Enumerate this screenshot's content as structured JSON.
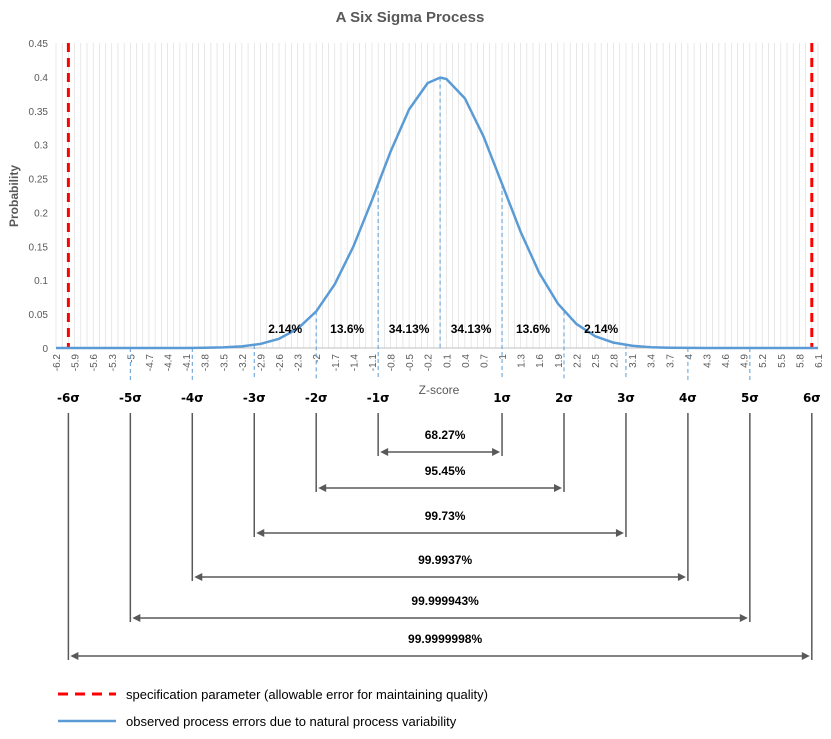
{
  "chart_data": {
    "type": "line",
    "title": "A Six Sigma Process",
    "xlabel": "Z-score",
    "ylabel": "Probability",
    "xlim": [
      -6.2,
      6.1
    ],
    "ylim": [
      0,
      0.45
    ],
    "y_ticks": [
      0,
      0.05,
      0.1,
      0.15,
      0.2,
      0.25,
      0.3,
      0.35,
      0.4,
      0.45
    ],
    "y_tick_labels": [
      "0",
      "0.05",
      "0.1",
      "0.15",
      "0.2",
      "0.25",
      "0.3",
      "0.35",
      "0.4",
      "0.45"
    ],
    "x_tick_labels": [
      "-6.2",
      "-5.9",
      "-5.6",
      "-5.3",
      "-5",
      "-4.7",
      "-4.4",
      "-4.1",
      "-3.8",
      "-3.5",
      "-3.2",
      "-2.9",
      "-2.6",
      "-2.3",
      "-2",
      "-1.7",
      "-1.4",
      "-1.1",
      "-0.8",
      "-0.5",
      "-0.2",
      "0.1",
      "0.4",
      "0.7",
      "1",
      "1.3",
      "1.6",
      "1.9",
      "2.2",
      "2.5",
      "2.8",
      "3.1",
      "3.4",
      "3.7",
      "4",
      "4.3",
      "4.6",
      "4.9",
      "5.2",
      "5.5",
      "5.8",
      "6.1"
    ],
    "grid": "vertical minor gridlines every 0.1",
    "series": [
      {
        "name": "observed process errors due to natural process variability",
        "color": "#5B9BD5",
        "x": [
          -6.2,
          -5.9,
          -5.6,
          -5.3,
          -5,
          -4.7,
          -4.4,
          -4.1,
          -3.8,
          -3.5,
          -3.2,
          -2.9,
          -2.6,
          -2.3,
          -2,
          -1.7,
          -1.4,
          -1.1,
          -0.8,
          -0.5,
          -0.2,
          0,
          0.1,
          0.4,
          0.7,
          1,
          1.3,
          1.6,
          1.9,
          2.2,
          2.5,
          2.8,
          3.1,
          3.4,
          3.7,
          4,
          4.3,
          4.6,
          4.9,
          5.2,
          5.5,
          5.8,
          6.1
        ],
        "y": [
          0,
          0,
          0,
          0,
          0,
          1e-05,
          2e-05,
          9e-05,
          0.0003,
          0.0009,
          0.0024,
          0.006,
          0.0136,
          0.0283,
          0.054,
          0.0941,
          0.1497,
          0.2179,
          0.2897,
          0.3521,
          0.391,
          0.3989,
          0.397,
          0.3683,
          0.3123,
          0.242,
          0.1714,
          0.1109,
          0.0656,
          0.0355,
          0.0175,
          0.0079,
          0.0033,
          0.0012,
          0.0004,
          0.0001,
          4e-05,
          1e-05,
          0,
          0,
          0,
          0,
          0
        ]
      }
    ],
    "spec_limits": [
      {
        "name": "specification parameter (allowable error for maintaining quality)",
        "x": [
          -6,
          6
        ],
        "color": "#FF0000"
      }
    ],
    "sigma_markers": [
      {
        "label": "-6σ",
        "x": -6
      },
      {
        "label": "-5σ",
        "x": -5
      },
      {
        "label": "-4σ",
        "x": -4
      },
      {
        "label": "-3σ",
        "x": -3
      },
      {
        "label": "-2σ",
        "x": -2
      },
      {
        "label": "-1σ",
        "x": -1
      },
      {
        "label": "1σ",
        "x": 1
      },
      {
        "label": "2σ",
        "x": 2
      },
      {
        "label": "3σ",
        "x": 3
      },
      {
        "label": "4σ",
        "x": 4
      },
      {
        "label": "5σ",
        "x": 5
      },
      {
        "label": "6σ",
        "x": 6
      }
    ],
    "region_labels": [
      {
        "label": "2.14%",
        "x": -2.5
      },
      {
        "label": "13.6%",
        "x": -1.5
      },
      {
        "label": "34.13%",
        "x": -0.5
      },
      {
        "label": "34.13%",
        "x": 0.5
      },
      {
        "label": "13.6%",
        "x": 1.5
      },
      {
        "label": "2.14%",
        "x": 2.6
      }
    ],
    "coverage_ranges": [
      {
        "sigma": 1,
        "label": "68.27%"
      },
      {
        "sigma": 2,
        "label": "95.45%"
      },
      {
        "sigma": 3,
        "label": "99.73%"
      },
      {
        "sigma": 4,
        "label": "99.9937%"
      },
      {
        "sigma": 5,
        "label": "99.999943%"
      },
      {
        "sigma": 6,
        "label": "99.9999998%"
      }
    ],
    "legend": {
      "placement": "bottom-left",
      "entries": [
        {
          "label": "specification parameter (allowable error for maintaining quality)",
          "color": "#FF0000",
          "style": "dashed"
        },
        {
          "label": "observed process errors due to natural process variability",
          "color": "#5B9BD5",
          "style": "solid"
        }
      ]
    }
  }
}
